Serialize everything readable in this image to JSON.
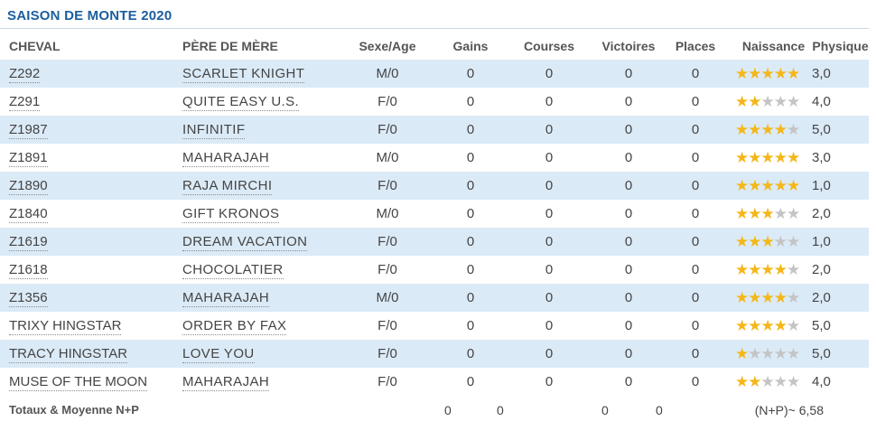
{
  "title": "SAISON DE MONTE 2020",
  "headers": {
    "cheval": "CHEVAL",
    "pere_de_mere": "PÈRE DE MÈRE",
    "sexe_age": "Sexe/Age",
    "gains": "Gains",
    "courses": "Courses",
    "victoires": "Victoires",
    "places": "Places",
    "naissance": "Naissance",
    "physique": "Physique"
  },
  "colors": {
    "title": "#1b5e9e",
    "row_shade": "#dbeaf7",
    "star_on": "#f4b718",
    "star_off": "#c4c4c4"
  },
  "rows": [
    {
      "cheval": "Z292",
      "pere": "SCARLET KNIGHT",
      "sexe_age": "M/0",
      "gains": "0",
      "courses": "0",
      "victoires": "0",
      "places": "0",
      "naissance": 5,
      "physique": "3,0"
    },
    {
      "cheval": "Z291",
      "pere": "QUITE EASY U.S.",
      "sexe_age": "F/0",
      "gains": "0",
      "courses": "0",
      "victoires": "0",
      "places": "0",
      "naissance": 2,
      "physique": "4,0"
    },
    {
      "cheval": "Z1987",
      "pere": "INFINITIF",
      "sexe_age": "F/0",
      "gains": "0",
      "courses": "0",
      "victoires": "0",
      "places": "0",
      "naissance": 4,
      "physique": "5,0"
    },
    {
      "cheval": "Z1891",
      "pere": "MAHARAJAH",
      "sexe_age": "M/0",
      "gains": "0",
      "courses": "0",
      "victoires": "0",
      "places": "0",
      "naissance": 5,
      "physique": "3,0"
    },
    {
      "cheval": "Z1890",
      "pere": "RAJA MIRCHI",
      "sexe_age": "F/0",
      "gains": "0",
      "courses": "0",
      "victoires": "0",
      "places": "0",
      "naissance": 5,
      "physique": "1,0"
    },
    {
      "cheval": "Z1840",
      "pere": "GIFT KRONOS",
      "sexe_age": "M/0",
      "gains": "0",
      "courses": "0",
      "victoires": "0",
      "places": "0",
      "naissance": 3,
      "physique": "2,0"
    },
    {
      "cheval": "Z1619",
      "pere": "DREAM VACATION",
      "sexe_age": "F/0",
      "gains": "0",
      "courses": "0",
      "victoires": "0",
      "places": "0",
      "naissance": 3,
      "physique": "1,0"
    },
    {
      "cheval": "Z1618",
      "pere": "CHOCOLATIER",
      "sexe_age": "F/0",
      "gains": "0",
      "courses": "0",
      "victoires": "0",
      "places": "0",
      "naissance": 4,
      "physique": "2,0"
    },
    {
      "cheval": "Z1356",
      "pere": "MAHARAJAH",
      "sexe_age": "M/0",
      "gains": "0",
      "courses": "0",
      "victoires": "0",
      "places": "0",
      "naissance": 4,
      "physique": "2,0"
    },
    {
      "cheval": "TRIXY HINGSTAR",
      "pere": "ORDER BY FAX",
      "sexe_age": "F/0",
      "gains": "0",
      "courses": "0",
      "victoires": "0",
      "places": "0",
      "naissance": 4,
      "physique": "5,0"
    },
    {
      "cheval": "TRACY HINGSTAR",
      "pere": "LOVE YOU",
      "sexe_age": "F/0",
      "gains": "0",
      "courses": "0",
      "victoires": "0",
      "places": "0",
      "naissance": 1,
      "physique": "5,0"
    },
    {
      "cheval": "MUSE OF THE MOON",
      "pere": "MAHARAJAH",
      "sexe_age": "F/0",
      "gains": "0",
      "courses": "0",
      "victoires": "0",
      "places": "0",
      "naissance": 2,
      "physique": "4,0"
    }
  ],
  "totals": {
    "label": "Totaux & Moyenne N+P",
    "gains": "0",
    "courses": "0",
    "victoires": "0",
    "places": "0",
    "moyenne": "(N+P)~ 6,58"
  }
}
